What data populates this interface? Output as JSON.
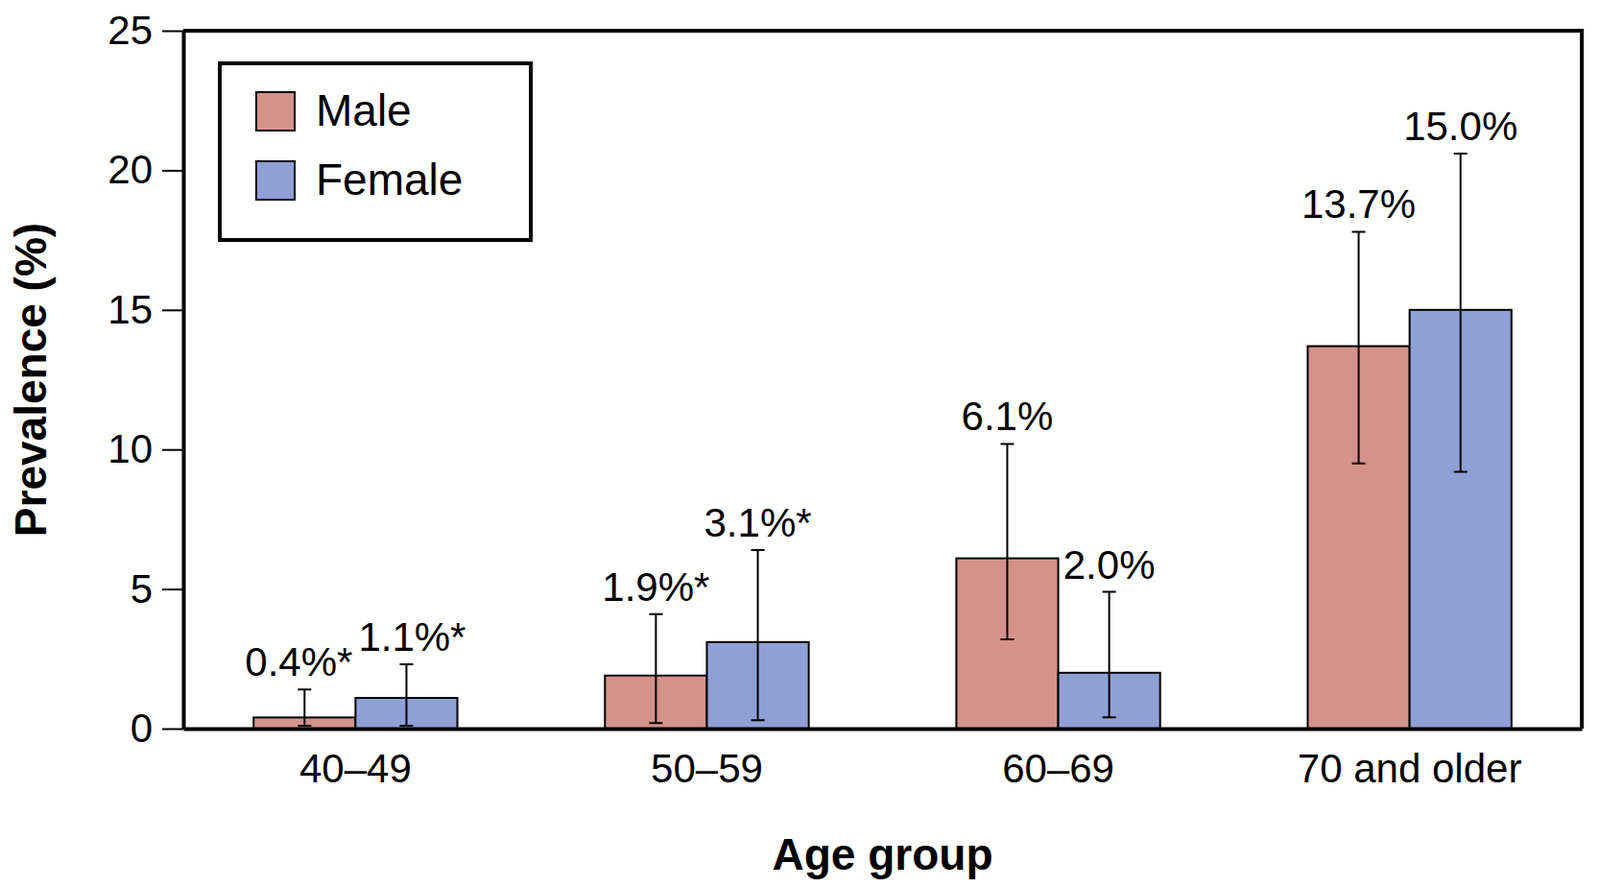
{
  "chart_data": {
    "type": "bar",
    "x_label": "Age group",
    "y_label": "Prevalence (%)",
    "categories": [
      "40–49",
      "50–59",
      "60–69",
      "70 and older"
    ],
    "series": [
      {
        "name": "Male",
        "color": "#d4928a",
        "values": [
          0.4,
          1.9,
          6.1,
          13.7
        ],
        "value_labels": [
          "0.4%*",
          "1.9%*",
          "6.1%",
          "13.7%"
        ],
        "ci_low": [
          0.1,
          0.2,
          3.2,
          9.5
        ],
        "ci_high": [
          1.4,
          4.1,
          10.2,
          17.8
        ]
      },
      {
        "name": "Female",
        "color": "#8fa0d6",
        "values": [
          1.1,
          3.1,
          2.0,
          15.0
        ],
        "value_labels": [
          "1.1%*",
          "3.1%*",
          "2.0%",
          "15.0%"
        ],
        "ci_low": [
          0.1,
          0.3,
          0.4,
          9.2
        ],
        "ci_high": [
          2.3,
          6.4,
          4.9,
          20.6
        ]
      }
    ],
    "ylim": [
      0,
      25
    ],
    "yticks": [
      0,
      5,
      10,
      15,
      20,
      25
    ],
    "legend": "top-left",
    "data_labels": true,
    "grid": false
  }
}
